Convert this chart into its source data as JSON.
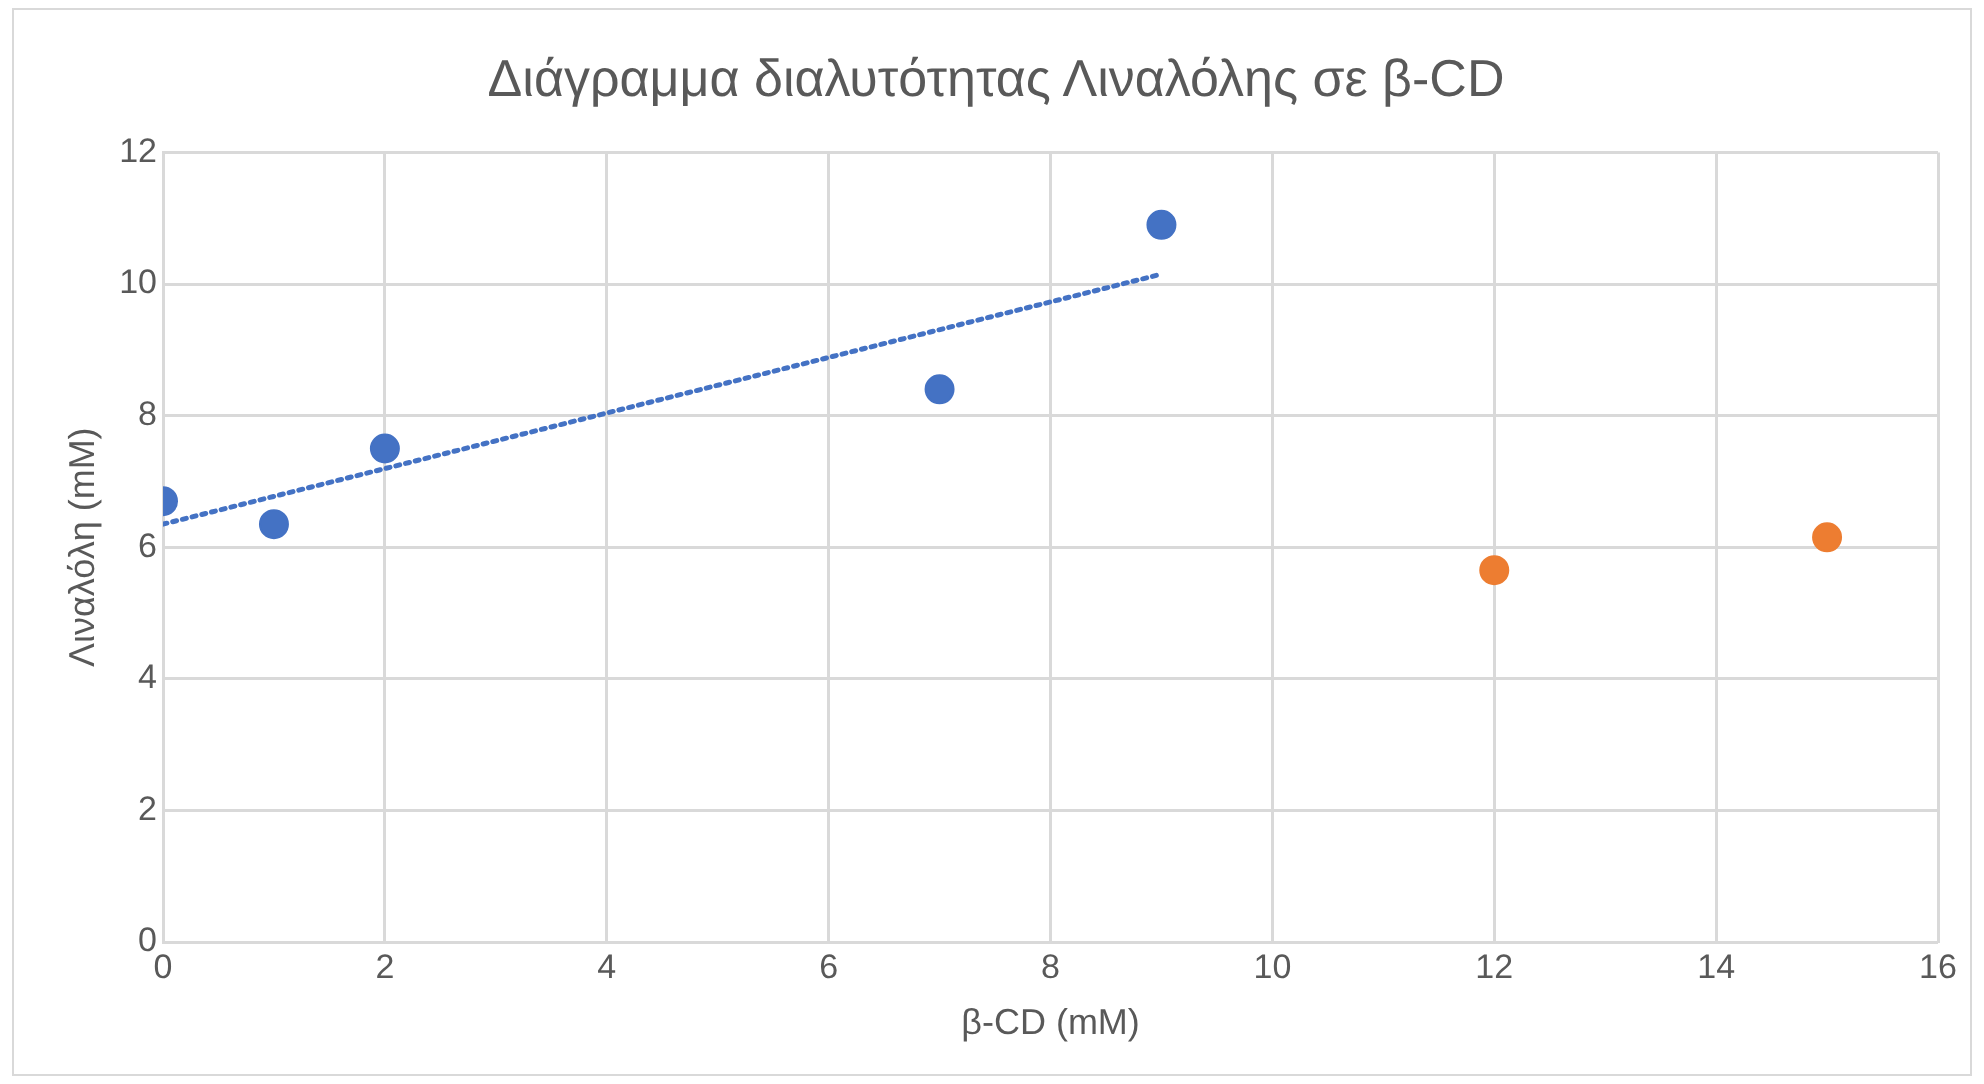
{
  "chart_data": {
    "type": "scatter",
    "title": "Διάγραμμα διαλυτότητας Λιναλόλης σε β-CD",
    "xlabel": "β-CD (mM)",
    "ylabel": "Λιναλόλη (mM)",
    "xlim": [
      0,
      16
    ],
    "xticks": [
      0,
      2,
      4,
      6,
      8,
      10,
      12,
      14,
      16
    ],
    "ylim": [
      0,
      12
    ],
    "yticks": [
      0,
      2,
      4,
      6,
      8,
      10,
      12
    ],
    "grid": true,
    "legend": false,
    "marker": "circle",
    "series": [
      {
        "color": "#4472c4",
        "x": [
          0,
          1,
          2,
          7,
          9
        ],
        "values": [
          6.7,
          6.35,
          7.5,
          8.4,
          10.9
        ]
      },
      {
        "color": "#ed7d31",
        "x": [
          12,
          15
        ],
        "values": [
          5.65,
          6.15
        ]
      },
      {
        "type": "line",
        "color": "#4472c4",
        "line_style": "dotted",
        "marker": "none",
        "x": [
          0,
          9
        ],
        "values": [
          6.35,
          10.15
        ]
      }
    ]
  }
}
